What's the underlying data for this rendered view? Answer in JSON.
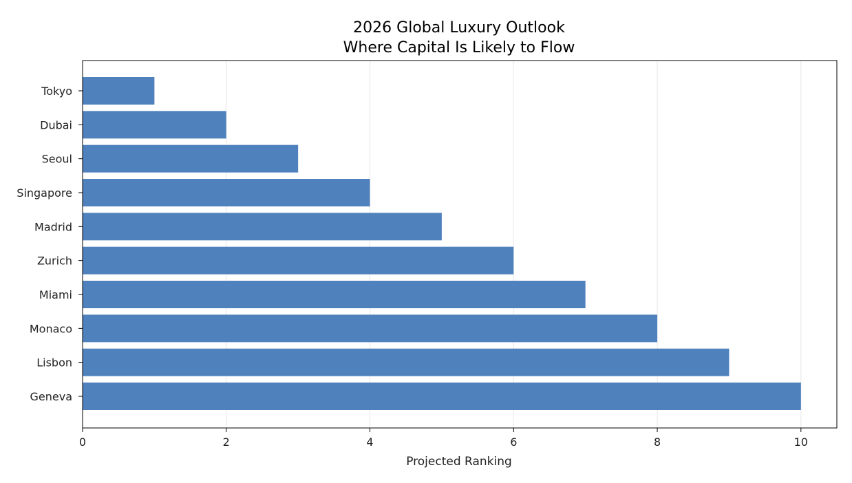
{
  "chart_data": {
    "type": "bar",
    "orientation": "horizontal",
    "title": "2026 Global Luxury Outlook",
    "subtitle": "Where Capital Is Likely to Flow",
    "xlabel": "Projected Ranking",
    "ylabel": "",
    "categories": [
      "Tokyo",
      "Dubai",
      "Seoul",
      "Singapore",
      "Madrid",
      "Zurich",
      "Miami",
      "Monaco",
      "Lisbon",
      "Geneva"
    ],
    "values": [
      1,
      2,
      3,
      4,
      5,
      6,
      7,
      8,
      9,
      10
    ],
    "xlim": [
      0,
      10.5
    ],
    "xticks": [
      0,
      2,
      4,
      6,
      8,
      10
    ],
    "grid": "vertical",
    "bar_color": "#4f81bd",
    "grid_color": "#e6e6e6"
  }
}
